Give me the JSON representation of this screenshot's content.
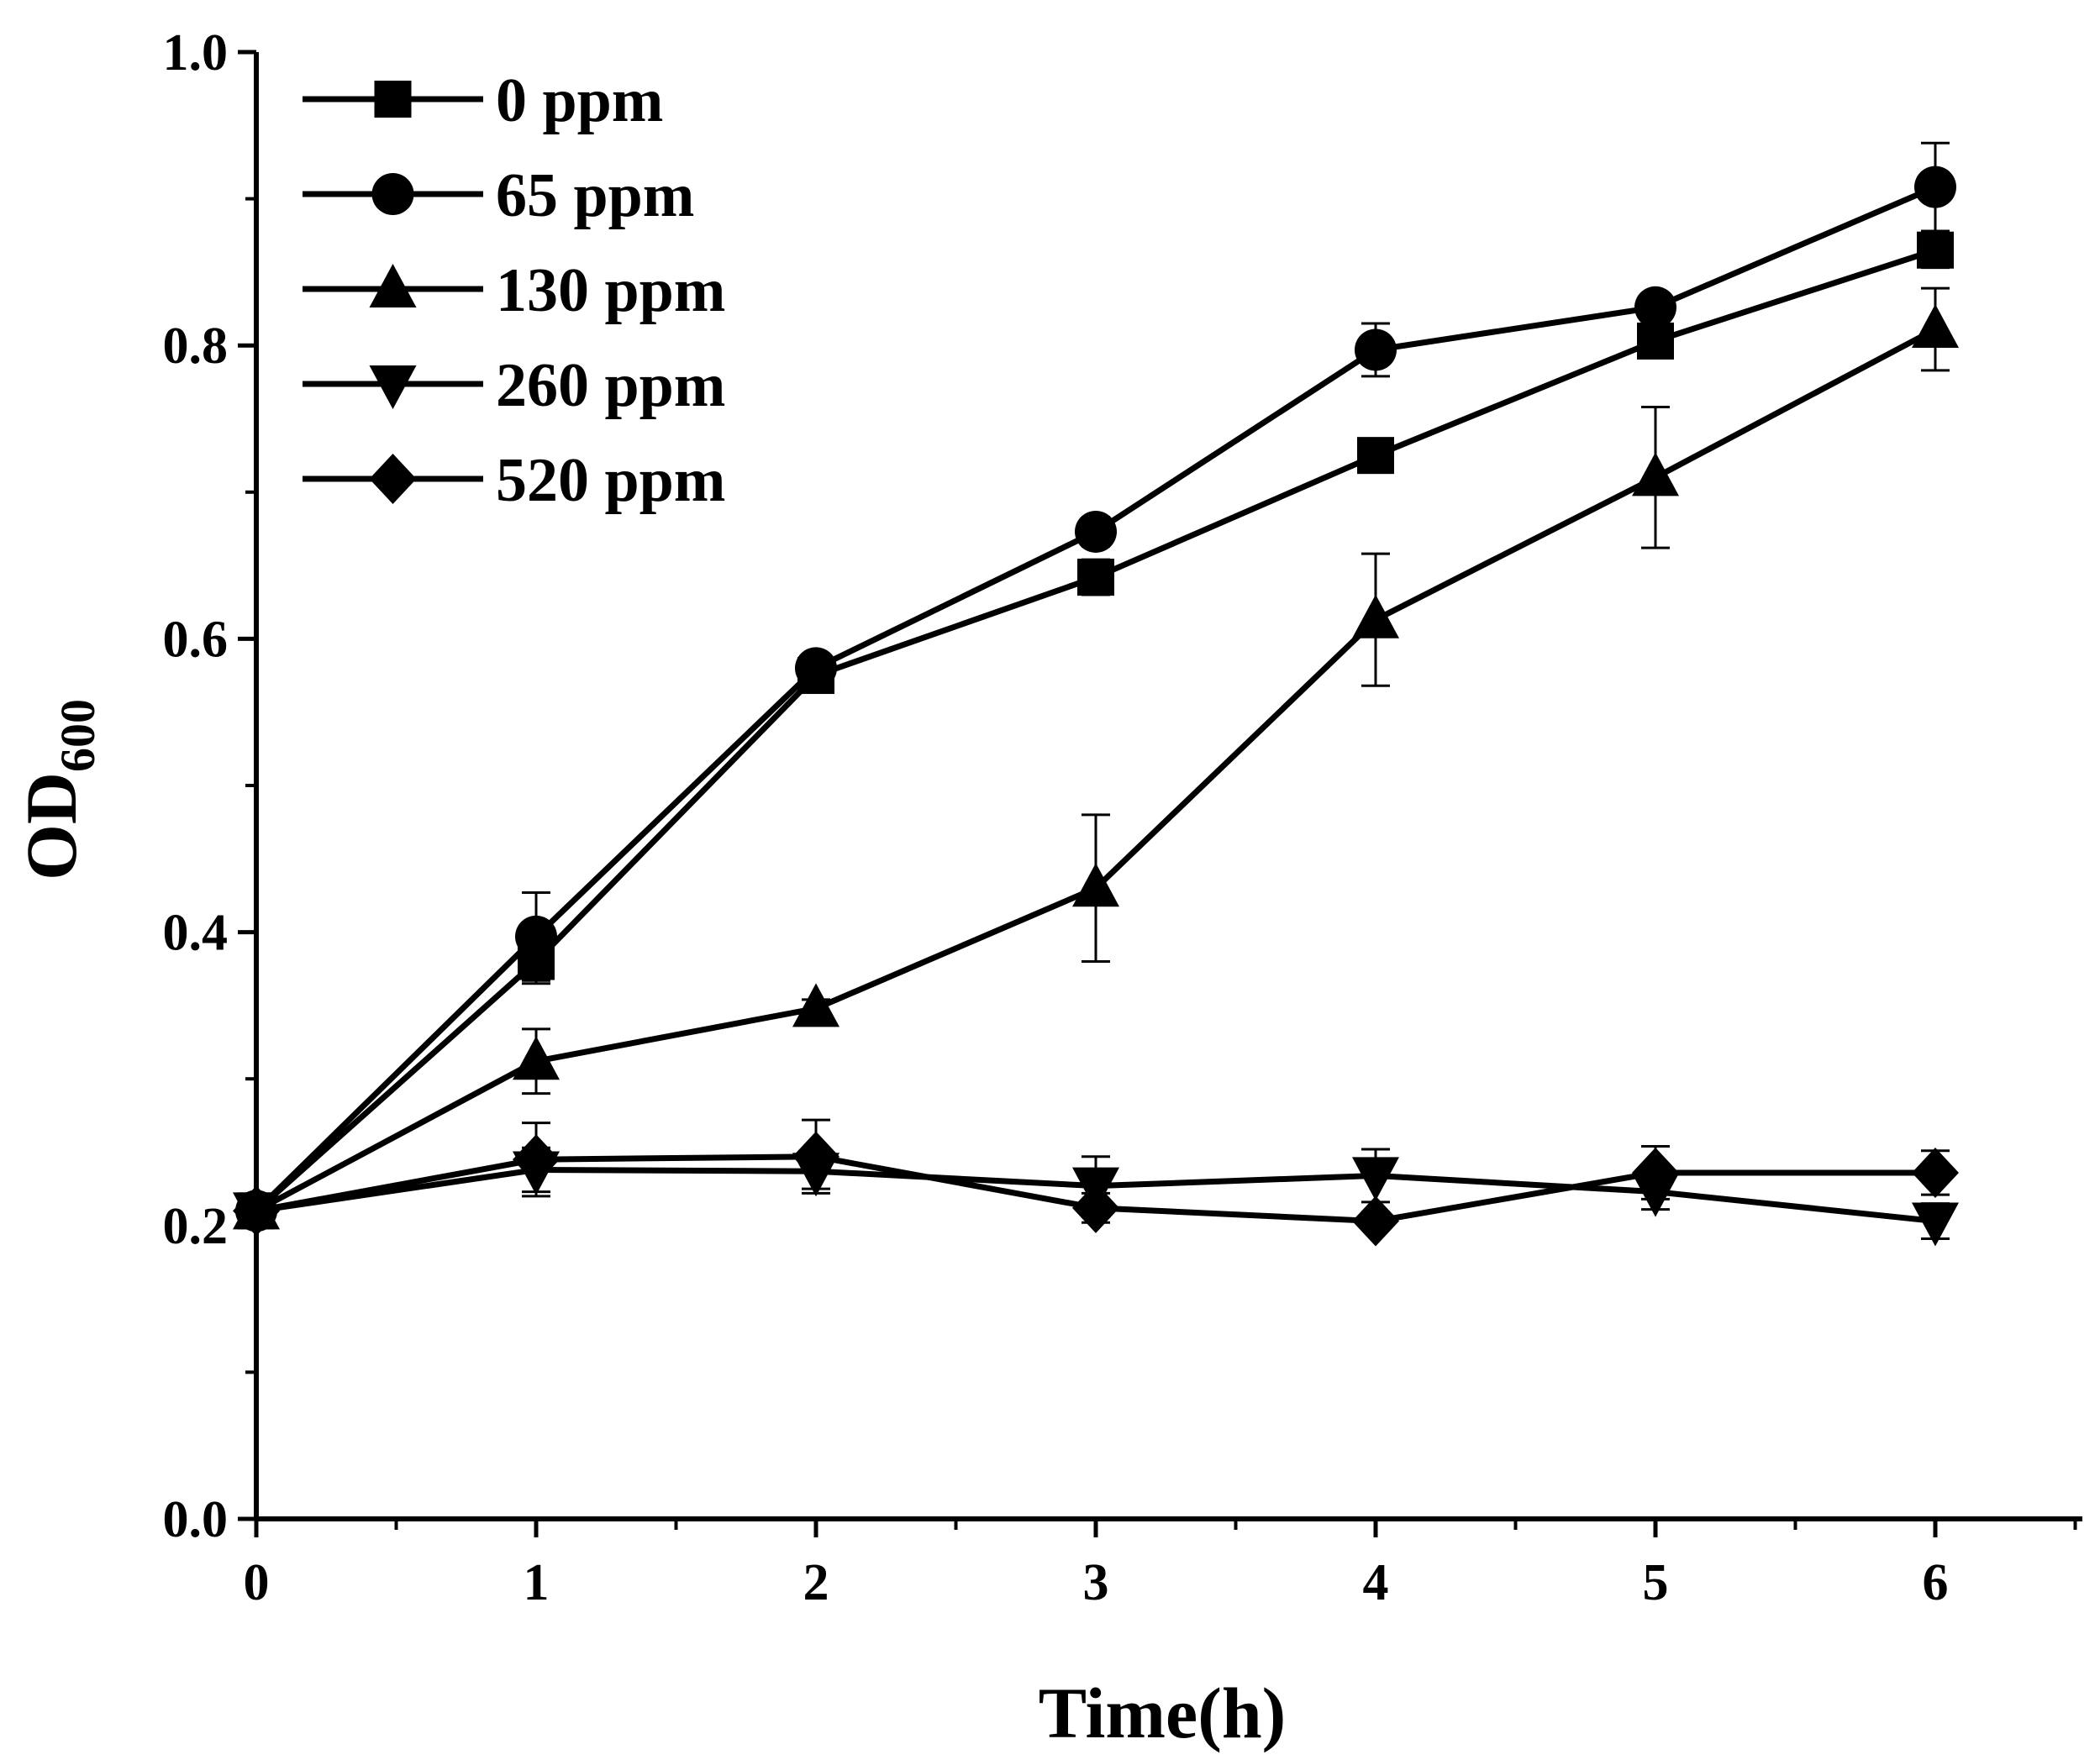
{
  "chart_data": {
    "type": "line",
    "xlabel": "Time(h)",
    "ylabel": {
      "main": "OD",
      "subscript": "600"
    },
    "xlim": [
      0,
      6.5
    ],
    "ylim": [
      0.0,
      1.0
    ],
    "xticks": [
      0,
      1,
      2,
      3,
      4,
      5,
      6
    ],
    "yticks": [
      0.0,
      0.2,
      0.4,
      0.6,
      0.8,
      1.0
    ],
    "xtick_labels": [
      "0",
      "1",
      "2",
      "3",
      "4",
      "5",
      "6"
    ],
    "ytick_labels": [
      "0.0",
      "0.2",
      "0.4",
      "0.6",
      "0.8",
      "1.0"
    ],
    "legend_position": "top-left",
    "x": [
      0,
      1,
      2,
      3,
      4,
      5,
      6
    ],
    "series": [
      {
        "name": "0 ppm",
        "marker": "square",
        "values": [
          0.21,
          0.38,
          0.575,
          0.642,
          0.725,
          0.803,
          0.865
        ],
        "errors": [
          0,
          0.015,
          0.01,
          0.012,
          0.01,
          0.008,
          0.012
        ]
      },
      {
        "name": "65 ppm",
        "marker": "circle",
        "values": [
          0.21,
          0.397,
          0.58,
          0.673,
          0.797,
          0.826,
          0.908
        ],
        "errors": [
          0,
          0.03,
          0.008,
          0.01,
          0.018,
          0.006,
          0.03
        ]
      },
      {
        "name": "130 ppm",
        "marker": "triangle-up",
        "values": [
          0.21,
          0.312,
          0.348,
          0.43,
          0.613,
          0.71,
          0.811
        ],
        "errors": [
          0,
          0.022,
          0.006,
          0.05,
          0.045,
          0.048,
          0.028
        ]
      },
      {
        "name": "260 ppm",
        "marker": "triangle-down",
        "values": [
          0.21,
          0.238,
          0.237,
          0.227,
          0.234,
          0.223,
          0.203
        ],
        "errors": [
          0,
          0.015,
          0.012,
          0.02,
          0.018,
          0.012,
          0.012
        ]
      },
      {
        "name": "520 ppm",
        "marker": "diamond",
        "values": [
          0.21,
          0.245,
          0.247,
          0.212,
          0.203,
          0.236,
          0.236
        ],
        "errors": [
          0,
          0.025,
          0.025,
          0.01,
          0.006,
          0.018,
          0.015
        ]
      }
    ]
  },
  "colors": {
    "line": "#000000",
    "background": "#ffffff"
  }
}
